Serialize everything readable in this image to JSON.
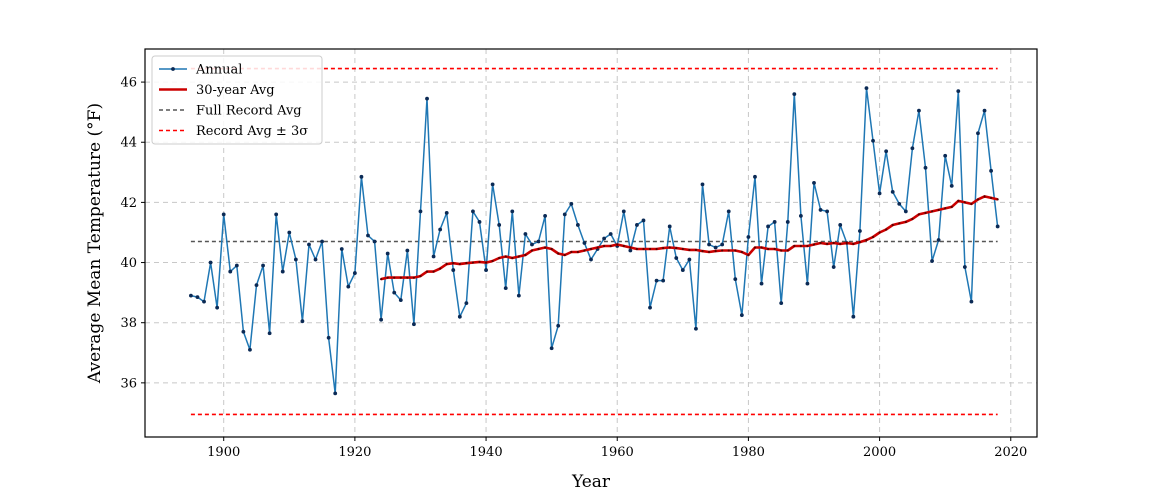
{
  "chart_data": {
    "type": "line",
    "xlabel": "Year",
    "ylabel": "Average Mean Temperature (°F)",
    "xlim": [
      1888,
      2024
    ],
    "ylim": [
      34.2,
      47.1
    ],
    "xticks": [
      1900,
      1920,
      1940,
      1960,
      1980,
      2000,
      2020
    ],
    "yticks": [
      36,
      38,
      40,
      42,
      44,
      46
    ],
    "grid": true,
    "legend_position": "top-left",
    "reference_lines": {
      "full_record_avg": 40.7,
      "upper_3sigma": 46.45,
      "lower_3sigma": 34.95,
      "x_range": [
        1895,
        2018
      ]
    },
    "series": [
      {
        "name": "Annual",
        "color": "#1f77b4",
        "style": "line-with-points",
        "x": [
          1895,
          1896,
          1897,
          1898,
          1899,
          1900,
          1901,
          1902,
          1903,
          1904,
          1905,
          1906,
          1907,
          1908,
          1909,
          1910,
          1911,
          1912,
          1913,
          1914,
          1915,
          1916,
          1917,
          1918,
          1919,
          1920,
          1921,
          1922,
          1923,
          1924,
          1925,
          1926,
          1927,
          1928,
          1929,
          1930,
          1931,
          1932,
          1933,
          1934,
          1935,
          1936,
          1937,
          1938,
          1939,
          1940,
          1941,
          1942,
          1943,
          1944,
          1945,
          1946,
          1947,
          1948,
          1949,
          1950,
          1951,
          1952,
          1953,
          1954,
          1955,
          1956,
          1957,
          1958,
          1959,
          1960,
          1961,
          1962,
          1963,
          1964,
          1965,
          1966,
          1967,
          1968,
          1969,
          1970,
          1971,
          1972,
          1973,
          1974,
          1975,
          1976,
          1977,
          1978,
          1979,
          1980,
          1981,
          1982,
          1983,
          1984,
          1985,
          1986,
          1987,
          1988,
          1989,
          1990,
          1991,
          1992,
          1993,
          1994,
          1995,
          1996,
          1997,
          1998,
          1999,
          2000,
          2001,
          2002,
          2003,
          2004,
          2005,
          2006,
          2007,
          2008,
          2009,
          2010,
          2011,
          2012,
          2013,
          2014,
          2015,
          2016,
          2017,
          2018
        ],
        "values": [
          38.9,
          38.85,
          38.7,
          40.0,
          38.5,
          41.6,
          39.7,
          39.9,
          37.7,
          37.1,
          39.25,
          39.9,
          37.65,
          41.6,
          39.7,
          41.0,
          40.1,
          38.05,
          40.6,
          40.1,
          40.7,
          37.5,
          35.65,
          40.45,
          39.2,
          39.65,
          42.85,
          40.9,
          40.7,
          38.1,
          40.3,
          39.0,
          38.75,
          40.4,
          37.95,
          41.7,
          45.45,
          40.2,
          41.1,
          41.65,
          39.75,
          38.2,
          38.65,
          41.7,
          41.35,
          39.75,
          42.6,
          41.25,
          39.15,
          41.7,
          38.9,
          40.95,
          40.6,
          40.7,
          41.55,
          37.15,
          37.9,
          41.6,
          41.95,
          41.25,
          40.65,
          40.1,
          40.45,
          40.8,
          40.95,
          40.55,
          41.7,
          40.4,
          41.25,
          41.4,
          38.5,
          39.4,
          39.4,
          41.2,
          40.15,
          39.75,
          40.1,
          37.8,
          42.6,
          40.6,
          40.5,
          40.6,
          41.7,
          39.45,
          38.25,
          40.85,
          42.85,
          39.3,
          41.2,
          41.35,
          38.65,
          41.35,
          45.6,
          41.55,
          39.3,
          42.65,
          41.75,
          41.7,
          39.85,
          41.25,
          40.65,
          38.2,
          41.05,
          45.8,
          44.05,
          42.3,
          43.7,
          42.35,
          41.95,
          41.7,
          43.8,
          45.05,
          43.15,
          40.05,
          40.75,
          43.55,
          42.55,
          45.7,
          39.85,
          38.7,
          44.3,
          45.05,
          43.05,
          41.2
        ]
      },
      {
        "name": "30-year Avg",
        "color": "#cc0000",
        "style": "thick-line",
        "x": [
          1924,
          1925,
          1926,
          1927,
          1928,
          1929,
          1930,
          1931,
          1932,
          1933,
          1934,
          1935,
          1936,
          1937,
          1938,
          1939,
          1940,
          1941,
          1942,
          1943,
          1944,
          1945,
          1946,
          1947,
          1948,
          1949,
          1950,
          1951,
          1952,
          1953,
          1954,
          1955,
          1956,
          1957,
          1958,
          1959,
          1960,
          1961,
          1962,
          1963,
          1964,
          1965,
          1966,
          1967,
          1968,
          1969,
          1970,
          1971,
          1972,
          1973,
          1974,
          1975,
          1976,
          1977,
          1978,
          1979,
          1980,
          1981,
          1982,
          1983,
          1984,
          1985,
          1986,
          1987,
          1988,
          1989,
          1990,
          1991,
          1992,
          1993,
          1994,
          1995,
          1996,
          1997,
          1998,
          1999,
          2000,
          2001,
          2002,
          2003,
          2004,
          2005,
          2006,
          2007,
          2008,
          2009,
          2010,
          2011,
          2012,
          2013,
          2014,
          2015,
          2016,
          2017,
          2018
        ],
        "values": [
          39.45,
          39.5,
          39.5,
          39.5,
          39.5,
          39.5,
          39.55,
          39.7,
          39.7,
          39.8,
          39.95,
          39.98,
          39.95,
          39.98,
          40.0,
          40.02,
          40.0,
          40.05,
          40.15,
          40.2,
          40.15,
          40.2,
          40.25,
          40.4,
          40.45,
          40.5,
          40.45,
          40.3,
          40.25,
          40.35,
          40.35,
          40.4,
          40.45,
          40.5,
          40.55,
          40.55,
          40.6,
          40.55,
          40.5,
          40.45,
          40.45,
          40.45,
          40.45,
          40.48,
          40.5,
          40.48,
          40.45,
          40.42,
          40.42,
          40.38,
          40.35,
          40.38,
          40.4,
          40.4,
          40.4,
          40.35,
          40.25,
          40.5,
          40.5,
          40.45,
          40.45,
          40.4,
          40.4,
          40.55,
          40.55,
          40.55,
          40.6,
          40.65,
          40.62,
          40.65,
          40.62,
          40.65,
          40.62,
          40.68,
          40.75,
          40.85,
          41.0,
          41.1,
          41.25,
          41.3,
          41.35,
          41.45,
          41.6,
          41.65,
          41.7,
          41.75,
          41.8,
          41.85,
          42.05,
          42.0,
          41.95,
          42.1,
          42.2,
          42.15,
          42.1
        ]
      },
      {
        "name": "Full Record Avg",
        "color": "#555555",
        "style": "dashed"
      },
      {
        "name": "Record Avg ± 3σ",
        "color": "#ff0000",
        "style": "dashed"
      }
    ]
  }
}
